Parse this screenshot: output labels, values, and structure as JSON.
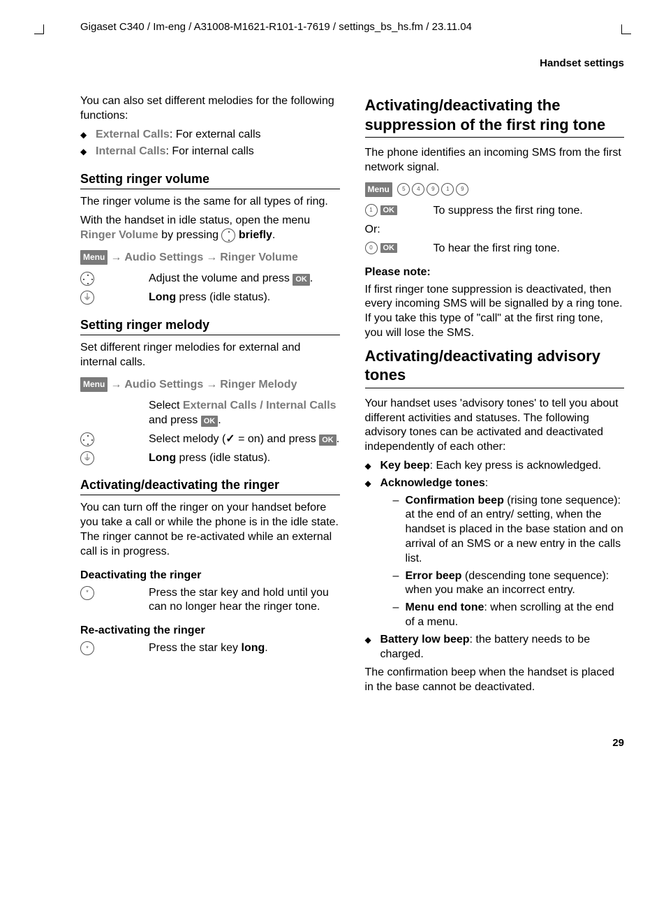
{
  "header_line": "Gigaset C340 / Im-eng / A31008-M1621-R101-1-7619 / settings_bs_hs.fm / 23.11.04",
  "section_label": "Handset settings",
  "page_number": "29",
  "col1": {
    "intro": "You can also set different melodies for the following functions:",
    "melody_items": [
      {
        "key": "External Calls",
        "desc": ": For external calls"
      },
      {
        "key": "Internal Calls",
        "desc": ": For internal calls"
      }
    ],
    "h_ringer_vol": "Setting ringer volume",
    "ringer_vol_p1": "The ringer volume is the same for all types of ring.",
    "ringer_vol_p2a": "With the handset in idle status, open the menu ",
    "ringer_vol_p2_menu": "Ringer Volume",
    "ringer_vol_p2b": " by pressing ",
    "ringer_vol_p2c": "briefly",
    "nav1": {
      "menu": "Menu",
      "a": "Audio Settings",
      "b": "Ringer Volume"
    },
    "rv_step1": "Adjust the volume and press ",
    "rv_step2a": "Long",
    "rv_step2b": " press (idle status).",
    "h_ringer_mel": "Setting ringer melody",
    "ringer_mel_p": "Set different ringer melodies for external and internal calls.",
    "nav2": {
      "menu": "Menu",
      "a": "Audio Settings",
      "b": "Ringer Melody"
    },
    "rm_step0a": "Select ",
    "rm_step0_ext": "External Calls",
    "rm_step0_sep": " / ",
    "rm_step0_int": "Internal Calls",
    "rm_step0b": " and press ",
    "rm_step1a": "Select melody (",
    "rm_step1b": " = on) and press ",
    "rm_step2a": "Long",
    "rm_step2b": " press (idle status).",
    "h_act_ringer": "Activating/deactivating the ringer",
    "act_ringer_p": "You can turn off the ringer on your handset before you take a call or while the phone is in the idle state. The ringer cannot be re-activated while an external call is in progress.",
    "h_deact": "Deactivating the ringer",
    "deact_step": "Press the star key and hold until you can no longer hear the ringer tone.",
    "h_react": "Re-activating the ringer",
    "react_step_a": "Press the star key ",
    "react_step_b": "long",
    "react_step_c": "."
  },
  "col2": {
    "h_suppress": "Activating/deactivating the suppression of the first ring tone",
    "sup_p1": "The phone identifies an incoming SMS from the first network signal.",
    "sup_menu": "Menu",
    "sup_keys": [
      "5",
      "4",
      "9",
      "1",
      "9"
    ],
    "sup_row1_key": "1",
    "sup_row1_txt": "To suppress the first ring tone.",
    "sup_or": "Or:",
    "sup_row2_key": "0",
    "sup_row2_txt": "To hear the first ring tone.",
    "h_note": "Please note:",
    "note_p": "If first ringer tone suppression is deactivated, then every incoming SMS will be signalled by a ring tone. If you take this type of \"call\" at the first ring tone, you will lose the SMS.",
    "h_adv": "Activating/deactivating advisory tones",
    "adv_p": "Your handset uses 'advisory tones' to tell you about different activities and statuses. The following advisory tones can be activated and deactivated independently of each other:",
    "adv_items": {
      "keybeep_k": "Key beep",
      "keybeep_t": ": Each key press is acknowledged.",
      "ack_k": "Acknowledge tones",
      "ack_t": ":",
      "conf_k": "Confirmation beep",
      "conf_t": " (rising tone sequence): at the end of an entry/ setting, when the handset is placed in the base station and on arrival of an SMS or a new entry in the calls list.",
      "err_k": "Error beep",
      "err_t": " (descending tone sequence): when you make an incorrect entry.",
      "menu_k": "Menu end tone",
      "menu_t": ": when scrolling at the end of a menu.",
      "batt_k": "Battery low beep",
      "batt_t": ": the battery needs to be charged."
    },
    "adv_tail": "The confirmation beep when the handset is placed in the base cannot be deactivated."
  }
}
